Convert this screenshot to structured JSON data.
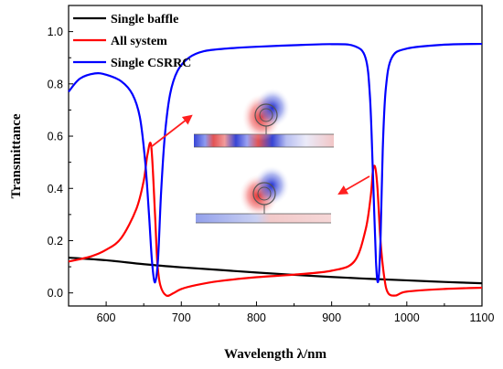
{
  "chart_data": {
    "type": "line",
    "xlabel": "Wavelength λ/nm",
    "ylabel": "Transmittance",
    "xlim": [
      550,
      1100
    ],
    "ylim": [
      -0.05,
      1.1
    ],
    "x_ticks": [
      "600",
      "700",
      "800",
      "900",
      "1000",
      "1100"
    ],
    "y_ticks": [
      "0.0",
      "0.2",
      "0.4",
      "0.6",
      "0.8",
      "1.0"
    ],
    "legend_position": "top-left",
    "grid": false,
    "series": [
      {
        "name": "Single baffle",
        "color": "#000000",
        "x": [
          550,
          600,
          650,
          700,
          750,
          800,
          850,
          900,
          950,
          1000,
          1050,
          1100
        ],
        "y": [
          0.135,
          0.125,
          0.11,
          0.098,
          0.088,
          0.078,
          0.069,
          0.061,
          0.054,
          0.048,
          0.042,
          0.037
        ]
      },
      {
        "name": "All system",
        "color": "#ff0000",
        "x": [
          550,
          580,
          600,
          620,
          640,
          650,
          655,
          660,
          665,
          668,
          672,
          680,
          690,
          700,
          720,
          750,
          800,
          850,
          900,
          930,
          945,
          952,
          955,
          958,
          961,
          965,
          970,
          975,
          985,
          1000,
          1050,
          1100
        ],
        "y": [
          0.12,
          0.14,
          0.165,
          0.21,
          0.32,
          0.43,
          0.53,
          0.56,
          0.3,
          0.12,
          0.03,
          -0.01,
          0.0,
          0.015,
          0.03,
          0.045,
          0.06,
          0.07,
          0.085,
          0.12,
          0.24,
          0.37,
          0.47,
          0.48,
          0.4,
          0.2,
          0.06,
          0.0,
          -0.01,
          0.005,
          0.015,
          0.02
        ]
      },
      {
        "name": "Single CSRRC",
        "color": "#0000ff",
        "x": [
          550,
          565,
          585,
          600,
          620,
          635,
          645,
          652,
          657,
          661,
          665,
          669,
          673,
          678,
          685,
          695,
          710,
          730,
          760,
          800,
          850,
          900,
          930,
          945,
          951,
          955,
          959,
          962,
          965,
          968,
          972,
          980,
          1000,
          1050,
          1100
        ],
        "y": [
          0.77,
          0.82,
          0.84,
          0.835,
          0.81,
          0.76,
          0.67,
          0.5,
          0.3,
          0.12,
          0.04,
          0.13,
          0.38,
          0.6,
          0.76,
          0.85,
          0.9,
          0.925,
          0.935,
          0.942,
          0.948,
          0.952,
          0.945,
          0.9,
          0.75,
          0.45,
          0.12,
          0.045,
          0.2,
          0.55,
          0.78,
          0.9,
          0.935,
          0.95,
          0.953
        ]
      }
    ]
  },
  "inset": {
    "description_hidden": ""
  }
}
